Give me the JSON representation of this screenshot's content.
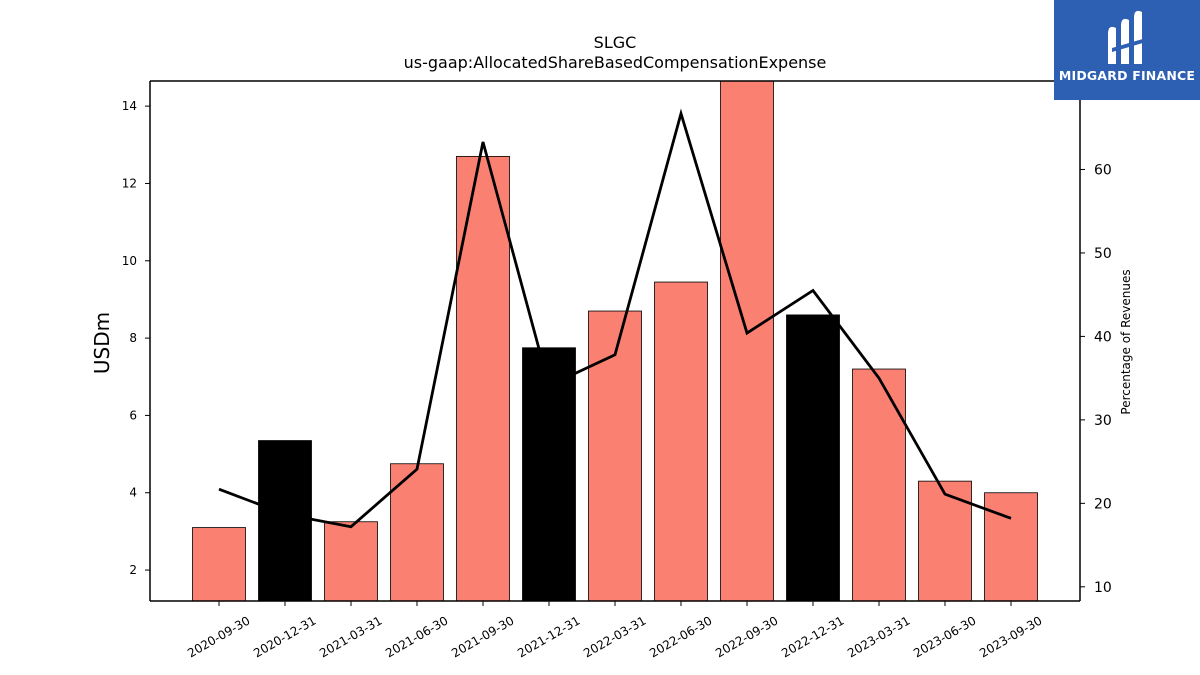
{
  "chart_data": {
    "type": "bar",
    "title": "SLGC",
    "subtitle": "us-gaap:AllocatedShareBasedCompensationExpense",
    "ylabel": "USDm",
    "ylabel_right": "Percentage of Revenues",
    "categories": [
      "2020-09-30",
      "2020-12-31",
      "2021-03-31",
      "2021-06-30",
      "2021-09-30",
      "2021-12-31",
      "2022-03-31",
      "2022-06-30",
      "2022-09-30",
      "2022-12-31",
      "2023-03-31",
      "2023-06-30",
      "2023-09-30"
    ],
    "series": [
      {
        "axis": "left",
        "kind": "bar",
        "values": [
          3.1,
          5.35,
          3.25,
          4.75,
          12.7,
          7.75,
          8.7,
          9.45,
          14.65,
          8.6,
          7.2,
          4.3,
          4.0
        ],
        "colors": [
          "#fa8072",
          "#000000",
          "#fa8072",
          "#fa8072",
          "#fa8072",
          "#000000",
          "#fa8072",
          "#fa8072",
          "#fa8072",
          "#000000",
          "#fa8072",
          "#fa8072",
          "#fa8072"
        ]
      },
      {
        "axis": "right",
        "kind": "line",
        "color": "#000000",
        "values": [
          21.7,
          18.7,
          17.2,
          24.1,
          63.3,
          34.1,
          37.8,
          66.7,
          40.4,
          45.5,
          35.0,
          21.1,
          18.2
        ]
      }
    ],
    "ylim": [
      1.2,
      14.65
    ],
    "ylim_right": [
      8.3,
      70.6
    ],
    "yticks": [
      2,
      4,
      6,
      8,
      10,
      12,
      14
    ],
    "yticks_right": [
      10,
      20,
      30,
      40,
      50,
      60
    ],
    "grid": false
  },
  "logo": {
    "text": "MIDGARD FINANCE",
    "bg": "#2d5fb3"
  }
}
